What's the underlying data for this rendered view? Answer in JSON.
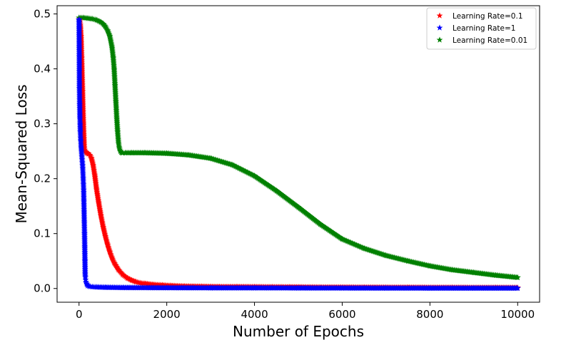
{
  "chart_data": {
    "type": "scatter",
    "title": "",
    "xlabel": "Number of Epochs",
    "ylabel": "Mean-Squared Loss",
    "xlim": [
      -500,
      10500
    ],
    "ylim": [
      -0.025,
      0.515
    ],
    "xticks": [
      0,
      2000,
      4000,
      6000,
      8000,
      10000
    ],
    "xtick_labels": [
      "0",
      "2000",
      "4000",
      "6000",
      "8000",
      "10000"
    ],
    "yticks": [
      0.0,
      0.1,
      0.2,
      0.3,
      0.4,
      0.5
    ],
    "ytick_labels": [
      "0.0",
      "0.1",
      "0.2",
      "0.3",
      "0.4",
      "0.5"
    ],
    "grid": false,
    "legend_position": "top-right",
    "marker": "star",
    "series": [
      {
        "name": "Learning Rate=0.1",
        "color": "#ff0000",
        "x": [
          0,
          15,
          30,
          45,
          60,
          80,
          100,
          120,
          140,
          160,
          180,
          200,
          220,
          250,
          280,
          320,
          360,
          400,
          450,
          500,
          550,
          600,
          650,
          700,
          750,
          800,
          900,
          1000,
          1100,
          1200,
          1300,
          1400,
          1500,
          1700,
          1900,
          2100,
          2400,
          2800,
          3200,
          3600,
          4000,
          4400,
          4800,
          5500,
          6500,
          7500,
          8500,
          9500,
          10000
        ],
        "y": [
          0.49,
          0.488,
          0.48,
          0.46,
          0.42,
          0.36,
          0.3,
          0.255,
          0.25,
          0.248,
          0.247,
          0.246,
          0.245,
          0.243,
          0.238,
          0.225,
          0.205,
          0.18,
          0.155,
          0.132,
          0.112,
          0.095,
          0.08,
          0.067,
          0.056,
          0.047,
          0.034,
          0.025,
          0.019,
          0.015,
          0.012,
          0.01,
          0.009,
          0.007,
          0.006,
          0.005,
          0.004,
          0.0035,
          0.003,
          0.003,
          0.0028,
          0.0026,
          0.0025,
          0.0022,
          0.002,
          0.0018,
          0.0016,
          0.0015,
          0.0014
        ]
      },
      {
        "name": "Learning Rate=1",
        "color": "#0000ff",
        "x": [
          0,
          5,
          10,
          15,
          20,
          25,
          30,
          35,
          40,
          45,
          50,
          55,
          60,
          65,
          70,
          75,
          80,
          85,
          90,
          95,
          100,
          105,
          110,
          115,
          120,
          125,
          130,
          135,
          140,
          145,
          150,
          160,
          170,
          180,
          200,
          230,
          260,
          300,
          400,
          600,
          1000,
          2000,
          3000,
          4000,
          5000,
          6000,
          7000,
          8000,
          9000,
          10000
        ],
        "y": [
          0.49,
          0.44,
          0.365,
          0.335,
          0.31,
          0.3,
          0.285,
          0.275,
          0.268,
          0.26,
          0.255,
          0.25,
          0.245,
          0.24,
          0.235,
          0.23,
          0.225,
          0.218,
          0.21,
          0.2,
          0.19,
          0.18,
          0.16,
          0.14,
          0.12,
          0.1,
          0.075,
          0.05,
          0.025,
          0.02,
          0.016,
          0.012,
          0.009,
          0.007,
          0.005,
          0.004,
          0.0035,
          0.003,
          0.0025,
          0.002,
          0.0015,
          0.0012,
          0.001,
          0.001,
          0.0008,
          0.0007,
          0.0006,
          0.0005,
          0.0005,
          0.0005
        ]
      },
      {
        "name": "Learning Rate=0.01",
        "color": "#008000",
        "x": [
          0,
          100,
          200,
          300,
          400,
          500,
          550,
          600,
          650,
          700,
          750,
          780,
          800,
          820,
          840,
          860,
          880,
          900,
          920,
          940,
          960,
          980,
          1000,
          1050,
          1200,
          1500,
          2000,
          2500,
          3000,
          3500,
          4000,
          4500,
          5000,
          5500,
          6000,
          6500,
          7000,
          7500,
          8000,
          8500,
          9000,
          9500,
          10000
        ],
        "y": [
          0.493,
          0.493,
          0.492,
          0.491,
          0.489,
          0.485,
          0.482,
          0.477,
          0.47,
          0.46,
          0.44,
          0.42,
          0.4,
          0.37,
          0.34,
          0.31,
          0.285,
          0.265,
          0.255,
          0.25,
          0.248,
          0.247,
          0.247,
          0.247,
          0.247,
          0.247,
          0.246,
          0.243,
          0.237,
          0.225,
          0.205,
          0.178,
          0.148,
          0.117,
          0.09,
          0.073,
          0.06,
          0.05,
          0.041,
          0.034,
          0.029,
          0.024,
          0.02
        ]
      }
    ]
  }
}
